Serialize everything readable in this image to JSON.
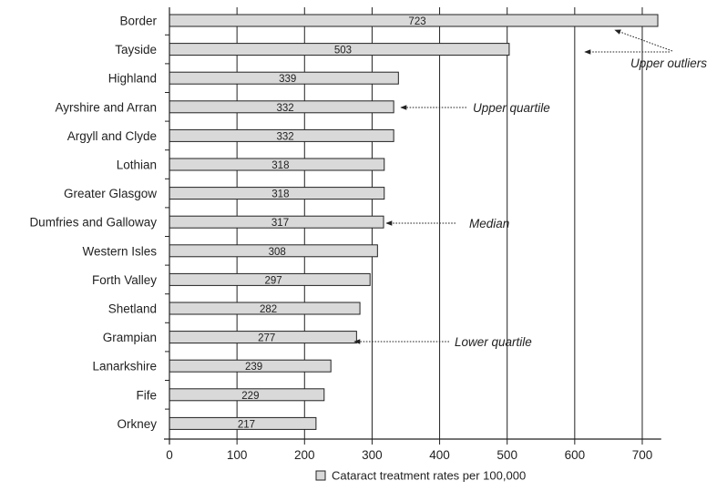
{
  "chart_data": {
    "type": "bar",
    "orientation": "horizontal",
    "categories": [
      "Border",
      "Tayside",
      "Highland",
      "Ayrshire and Arran",
      "Argyll and Clyde",
      "Lothian",
      "Greater Glasgow",
      "Dumfries and Galloway",
      "Western Isles",
      "Forth Valley",
      "Shetland",
      "Grampian",
      "Lanarkshire",
      "Fife",
      "Orkney"
    ],
    "values": [
      723,
      503,
      339,
      332,
      332,
      318,
      318,
      317,
      308,
      297,
      282,
      277,
      239,
      229,
      217
    ],
    "series": [
      {
        "name": "Cataract treatment rates per 100,000",
        "values": [
          723,
          503,
          339,
          332,
          332,
          318,
          318,
          317,
          308,
          297,
          282,
          277,
          239,
          229,
          217
        ]
      }
    ],
    "xlim": [
      0,
      700
    ],
    "xticks": [
      "0",
      "100",
      "200",
      "300",
      "400",
      "500",
      "600",
      "700"
    ],
    "xlabel": "",
    "ylabel": "",
    "title": "",
    "grid": "vertical",
    "legend": {
      "entries": [
        "Cataract treatment rates per 100,000"
      ],
      "placement": "bottom"
    },
    "bar_color": "#d9d9d9",
    "annotations": [
      {
        "text": "Upper outliers",
        "points_to": [
          "Border",
          "Tayside"
        ]
      },
      {
        "text": "Upper quartile",
        "points_to": [
          "Ayrshire and Arran"
        ]
      },
      {
        "text": "Median",
        "points_to": [
          "Dumfries and Galloway"
        ]
      },
      {
        "text": "Lower quartile",
        "points_to": [
          "Grampian"
        ]
      }
    ]
  }
}
